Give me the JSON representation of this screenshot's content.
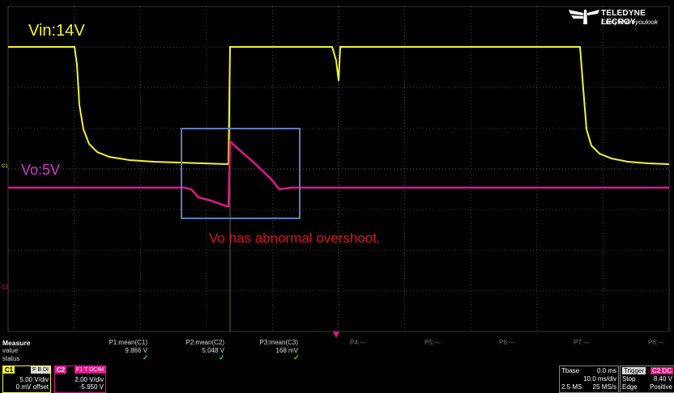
{
  "brand": {
    "name": "TELEDYNE LECROY",
    "tagline": "Everywhereyoulook"
  },
  "annotations": {
    "vin_label": "Vin:14V",
    "vo_label": "Vo:5V",
    "note": "Vo has abnormal overshoot."
  },
  "markers": {
    "c1": "C1",
    "c2": "C2"
  },
  "measure": {
    "heading": "Measure",
    "row_value": "value",
    "row_status": "status",
    "params": [
      {
        "label": "P1:mean(C1)",
        "value": "9.866 V",
        "status": "✓"
      },
      {
        "label": "P2:mean(C2)",
        "value": "5.048 V",
        "status": "✓"
      },
      {
        "label": "P3:mean(C3)",
        "value": "168 mV",
        "status": "✓"
      },
      {
        "label": "P4:---",
        "value": "",
        "status": ""
      },
      {
        "label": "P5:---",
        "value": "",
        "status": ""
      },
      {
        "label": "P6:---",
        "value": "",
        "status": ""
      },
      {
        "label": "P7:---",
        "value": "",
        "status": ""
      },
      {
        "label": "P8:---",
        "value": "",
        "status": ""
      }
    ]
  },
  "channels": [
    {
      "tag": "C1",
      "flags": "F B DI",
      "scale": "5.00 V/div",
      "offset": "0 mV offset",
      "color": "#f2f23a"
    },
    {
      "tag": "C2",
      "flags": "F1 T DCIM",
      "scale": "2.00 V/div",
      "offset": "-5.950 V",
      "color": "#e0188a"
    }
  ],
  "timebase": {
    "label": "Tbase",
    "delay": "0.0 ms",
    "per_div": "10.0 ms/div",
    "samples": "2.5 MS",
    "rate": "25 MS/s"
  },
  "trigger": {
    "label": "Trigger",
    "flags": "C2 DC",
    "mode": "Stop",
    "level": "8.40 V",
    "type": "Edge",
    "slope": "Positive"
  },
  "colors": {
    "ch1": "#f2f23a",
    "ch2": "#e0188a",
    "grid": "#6a6a6a",
    "box": "#5b7db8",
    "annotation": "#d71920",
    "vo_label": "#cc3fc5"
  }
}
